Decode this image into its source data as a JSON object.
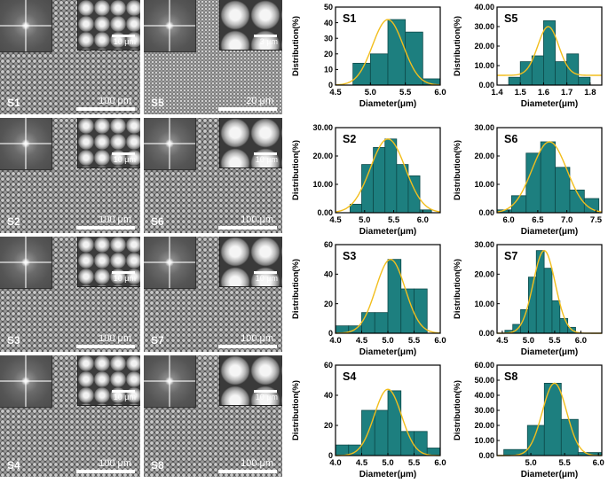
{
  "sem_panels": [
    {
      "label": "S1",
      "inset_scale": "10 μm",
      "scale": "100 μm"
    },
    {
      "label": "S5",
      "inset_scale": "3 μm",
      "scale": "20 μm"
    },
    {
      "label": "S2",
      "inset_scale": "10 μm",
      "scale": "100 μm"
    },
    {
      "label": "S6",
      "inset_scale": "10 μm",
      "scale": "100 μm"
    },
    {
      "label": "S3",
      "inset_scale": "10 μm",
      "scale": "100 μm"
    },
    {
      "label": "S7",
      "inset_scale": "10 μm",
      "scale": "100 μm"
    },
    {
      "label": "S4",
      "inset_scale": "10 μm",
      "scale": "100 μm"
    },
    {
      "label": "S8",
      "inset_scale": "10 μm",
      "scale": "100 μm"
    }
  ],
  "chart_data": [
    {
      "type": "bar",
      "title": "S1",
      "xlabel": "Diameter(μm)",
      "ylabel": "Distribution(%)",
      "xlim": [
        4.5,
        6.0
      ],
      "ylim": [
        0,
        50
      ],
      "xticks": [
        "4.5",
        "5.0",
        "5.5",
        "6.0"
      ],
      "yticks": [
        "0",
        "10",
        "20",
        "30",
        "40",
        "50"
      ],
      "bins": [
        [
          4.75,
          5.0,
          14
        ],
        [
          5.0,
          5.25,
          20
        ],
        [
          5.25,
          5.5,
          42
        ],
        [
          5.5,
          5.75,
          34
        ],
        [
          5.75,
          6.0,
          4
        ]
      ],
      "fit": {
        "mean": 5.25,
        "sd": 0.22,
        "peak": 42
      }
    },
    {
      "type": "bar",
      "title": "S5",
      "xlabel": "Diameter(μm)",
      "ylabel": "Distribution(%)",
      "xlim": [
        1.4,
        1.85
      ],
      "ylim": [
        0,
        40
      ],
      "xticks": [
        "1.4",
        "1.5",
        "1.6",
        "1.7",
        "1.8"
      ],
      "yticks": [
        "0.00",
        "10.00",
        "20.00",
        "30.00",
        "40.00"
      ],
      "bins": [
        [
          1.45,
          1.5,
          4
        ],
        [
          1.5,
          1.55,
          12
        ],
        [
          1.55,
          1.6,
          15
        ],
        [
          1.6,
          1.65,
          33
        ],
        [
          1.65,
          1.7,
          12
        ],
        [
          1.7,
          1.75,
          16
        ],
        [
          1.75,
          1.8,
          4
        ]
      ],
      "fit": {
        "mean": 1.62,
        "sd": 0.045,
        "peak": 30,
        "baseline": 5
      }
    },
    {
      "type": "bar",
      "title": "S2",
      "xlabel": "Diameter(μm)",
      "ylabel": "Distribution(%)",
      "xlim": [
        4.5,
        6.3
      ],
      "ylim": [
        0,
        30
      ],
      "xticks": [
        "4.5",
        "5.0",
        "5.5",
        "6.0"
      ],
      "yticks": [
        "0.00",
        "10.00",
        "20.00",
        "30.00"
      ],
      "bins": [
        [
          4.75,
          4.95,
          3
        ],
        [
          4.95,
          5.15,
          17
        ],
        [
          5.15,
          5.35,
          23
        ],
        [
          5.35,
          5.55,
          26
        ],
        [
          5.55,
          5.75,
          17
        ],
        [
          5.75,
          5.95,
          13
        ],
        [
          5.95,
          6.15,
          1
        ]
      ],
      "fit": {
        "mean": 5.4,
        "sd": 0.3,
        "peak": 26
      }
    },
    {
      "type": "bar",
      "title": "S6",
      "xlabel": "Diameter(μm)",
      "ylabel": "Distribution(%)",
      "xlim": [
        5.8,
        7.6
      ],
      "ylim": [
        0,
        30
      ],
      "xticks": [
        "6.0",
        "6.5",
        "7.0",
        "7.5"
      ],
      "yticks": [
        "0.00",
        "10.00",
        "20.00",
        "30.00"
      ],
      "bins": [
        [
          5.8,
          6.05,
          1
        ],
        [
          6.05,
          6.3,
          6
        ],
        [
          6.3,
          6.55,
          21
        ],
        [
          6.55,
          6.8,
          25
        ],
        [
          6.8,
          7.05,
          16
        ],
        [
          7.05,
          7.3,
          8
        ],
        [
          7.3,
          7.55,
          5
        ]
      ],
      "fit": {
        "mean": 6.7,
        "sd": 0.3,
        "peak": 25
      }
    },
    {
      "type": "bar",
      "title": "S3",
      "xlabel": "Diameter(μm)",
      "ylabel": "Distribution(%)",
      "xlim": [
        4.0,
        6.0
      ],
      "ylim": [
        0,
        60
      ],
      "xticks": [
        "4.0",
        "4.5",
        "5.0",
        "5.5",
        "6.0"
      ],
      "yticks": [
        "0",
        "20",
        "40",
        "60"
      ],
      "bins": [
        [
          4.0,
          4.25,
          5
        ],
        [
          4.25,
          4.5,
          5
        ],
        [
          4.5,
          4.75,
          14
        ],
        [
          4.75,
          5.0,
          14
        ],
        [
          5.0,
          5.25,
          50
        ],
        [
          5.25,
          5.5,
          30
        ],
        [
          5.5,
          5.75,
          30
        ]
      ],
      "fit": {
        "mean": 5.05,
        "sd": 0.28,
        "peak": 50
      }
    },
    {
      "type": "bar",
      "title": "S7",
      "xlabel": "Diameter(μm)",
      "ylabel": "Distribution(%)",
      "xlim": [
        4.4,
        6.4
      ],
      "ylim": [
        0,
        30
      ],
      "xticks": [
        "4.5",
        "5.0",
        "5.5",
        "6.0"
      ],
      "yticks": [
        "0.00",
        "10.00",
        "20.00",
        "30.00"
      ],
      "bins": [
        [
          4.55,
          4.7,
          1
        ],
        [
          4.7,
          4.85,
          3
        ],
        [
          4.85,
          5.0,
          8
        ],
        [
          5.0,
          5.15,
          19
        ],
        [
          5.15,
          5.3,
          28
        ],
        [
          5.3,
          5.45,
          22
        ],
        [
          5.45,
          5.6,
          11
        ],
        [
          5.6,
          5.75,
          5
        ],
        [
          5.75,
          5.9,
          2
        ]
      ],
      "fit": {
        "mean": 5.3,
        "sd": 0.21,
        "peak": 28
      }
    },
    {
      "type": "bar",
      "title": "S4",
      "xlabel": "Diameter(μm)",
      "ylabel": "Distribution(%)",
      "xlim": [
        4.0,
        6.0
      ],
      "ylim": [
        0,
        60
      ],
      "xticks": [
        "4.0",
        "4.5",
        "5.0",
        "5.5",
        "6.0"
      ],
      "yticks": [
        "0",
        "20",
        "40",
        "60"
      ],
      "bins": [
        [
          4.0,
          4.25,
          7
        ],
        [
          4.25,
          4.5,
          7
        ],
        [
          4.5,
          4.75,
          30
        ],
        [
          4.75,
          5.0,
          30
        ],
        [
          5.0,
          5.25,
          43
        ],
        [
          5.25,
          5.5,
          16
        ],
        [
          5.5,
          5.75,
          16
        ],
        [
          5.75,
          6.0,
          5
        ]
      ],
      "fit": {
        "mean": 5.0,
        "sd": 0.26,
        "peak": 44
      }
    },
    {
      "type": "bar",
      "title": "S8",
      "xlabel": "Diameter(μm)",
      "ylabel": "Distribution(%)",
      "xlim": [
        4.5,
        6.05
      ],
      "ylim": [
        0,
        60
      ],
      "xticks": [
        "5.0",
        "5.5",
        "6.0"
      ],
      "yticks": [
        "0.00",
        "10.00",
        "20.00",
        "30.00",
        "40.00",
        "50.00",
        "60.00"
      ],
      "bins": [
        [
          4.6,
          4.95,
          4
        ],
        [
          4.95,
          5.2,
          20
        ],
        [
          5.2,
          5.45,
          48
        ],
        [
          5.45,
          5.7,
          24
        ],
        [
          5.7,
          6.05,
          2
        ]
      ],
      "fit": {
        "mean": 5.35,
        "sd": 0.18,
        "peak": 48
      }
    }
  ],
  "colors": {
    "bar": "#1d7f7f",
    "bar_edge": "#0d4a4a",
    "fit": "#f2be1d",
    "axis": "#000000"
  }
}
